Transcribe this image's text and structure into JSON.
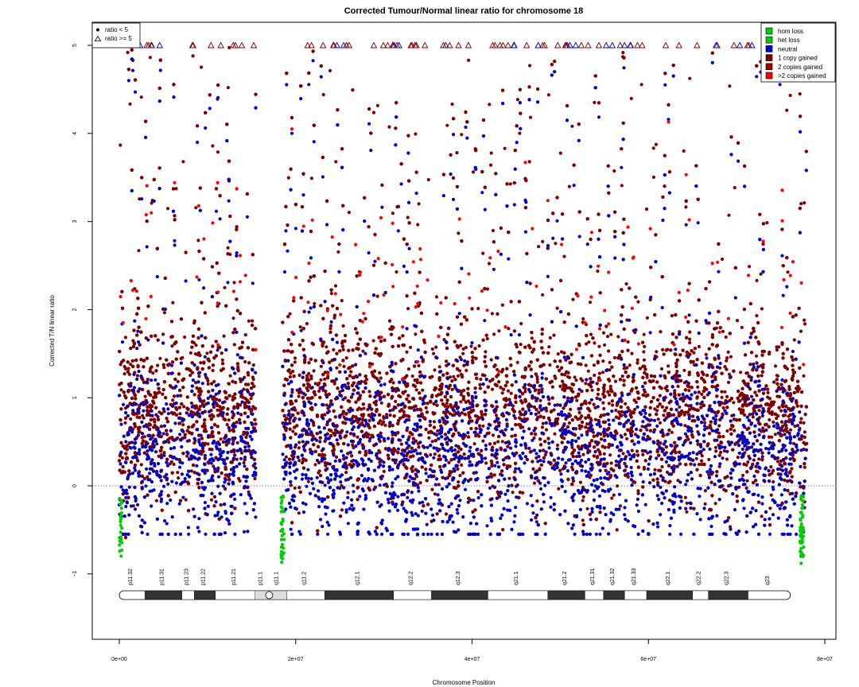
{
  "chart_data": {
    "type": "scatter",
    "title": "Corrected Tumour/Normal linear ratio for chromosome  18",
    "xlabel": "Chromosome Position",
    "ylabel": "Corrected T/N linear ratio",
    "xlim": [
      0,
      80000000
    ],
    "ylim": [
      -1.8,
      5.25
    ],
    "x_ticks": [
      0,
      20000000,
      40000000,
      60000000,
      80000000
    ],
    "x_tick_labels": [
      "0e+00",
      "2e+07",
      "4e+07",
      "6e+07",
      "8e+07"
    ],
    "y_ticks": [
      -1,
      0,
      1,
      2,
      3,
      4,
      5
    ],
    "y_tick_labels": [
      "−1",
      "0",
      "1",
      "2",
      "3",
      "4",
      "5"
    ],
    "reference_line": 0,
    "grid": false,
    "legend_shape": {
      "placement": "top-left",
      "entries": [
        {
          "label": "ratio < 5",
          "marker": "filled-circle"
        },
        {
          "label": "ratio >= 5",
          "marker": "open-triangle"
        }
      ]
    },
    "legend_state": {
      "placement": "top-right",
      "entries": [
        {
          "label": "hom loss",
          "color": "#00cc00"
        },
        {
          "label": "het loss",
          "color": "#00cc00"
        },
        {
          "label": "neutral",
          "color": "#0000cc"
        },
        {
          "label": "1 copy gained",
          "color": "#800000"
        },
        {
          "label": "2 copies gained",
          "color": "#a00000"
        },
        {
          "label": ">2 copies gained",
          "color": "#ff0000"
        }
      ]
    },
    "series": [
      {
        "name": "1 copy gained",
        "color": "#800000",
        "ranges": [
          [
            0,
            15500000
          ],
          [
            18500000,
            78000000
          ]
        ],
        "y_range": [
          -0.6,
          5.0
        ],
        "y_center": 0.8
      },
      {
        "name": "neutral",
        "color": "#0000cc",
        "ranges": [
          [
            0,
            15500000
          ],
          [
            18500000,
            78000000
          ]
        ],
        "y_range": [
          -0.55,
          4.9
        ],
        "y_center": 0.3
      },
      {
        "name": ">2 copies gained",
        "color": "#ff0000",
        "ranges": [
          [
            0,
            15500000
          ],
          [
            18500000,
            78000000
          ]
        ],
        "y_range": [
          1.2,
          4.5
        ],
        "y_center": 2.2
      },
      {
        "name": "het loss",
        "color": "#00cc00",
        "ranges": [
          [
            0,
            300000
          ],
          [
            18300000,
            18700000
          ],
          [
            77200000,
            77600000
          ]
        ],
        "y_range": [
          -0.9,
          -0.1
        ],
        "y_center": -0.5
      }
    ],
    "ideogram": {
      "centromere": 17000000,
      "bands": [
        {
          "name": "p11.32",
          "start": 0,
          "end": 2900000,
          "stain": "gneg"
        },
        {
          "name": "p11.31",
          "start": 2900000,
          "end": 7100000,
          "stain": "gpos"
        },
        {
          "name": "p11.23",
          "start": 7100000,
          "end": 8500000,
          "stain": "gneg"
        },
        {
          "name": "p11.22",
          "start": 8500000,
          "end": 10900000,
          "stain": "gpos"
        },
        {
          "name": "p11.21",
          "start": 10900000,
          "end": 15400000,
          "stain": "gneg"
        },
        {
          "name": "p11.1",
          "start": 15400000,
          "end": 17000000,
          "stain": "acen"
        },
        {
          "name": "q11.1",
          "start": 17000000,
          "end": 19000000,
          "stain": "acen"
        },
        {
          "name": "q11.2",
          "start": 19000000,
          "end": 23300000,
          "stain": "gneg"
        },
        {
          "name": "q12.1",
          "start": 23300000,
          "end": 31100000,
          "stain": "gpos"
        },
        {
          "name": "q12.2",
          "start": 31100000,
          "end": 35400000,
          "stain": "gneg"
        },
        {
          "name": "q12.3",
          "start": 35400000,
          "end": 41800000,
          "stain": "gpos"
        },
        {
          "name": "q21.1",
          "start": 41800000,
          "end": 48600000,
          "stain": "gneg"
        },
        {
          "name": "q21.2",
          "start": 48600000,
          "end": 52800000,
          "stain": "gpos"
        },
        {
          "name": "q21.31",
          "start": 52800000,
          "end": 54900000,
          "stain": "gneg"
        },
        {
          "name": "q21.32",
          "start": 54900000,
          "end": 57300000,
          "stain": "gpos"
        },
        {
          "name": "q21.33",
          "start": 57300000,
          "end": 59800000,
          "stain": "gneg"
        },
        {
          "name": "q22.1",
          "start": 59800000,
          "end": 65000000,
          "stain": "gpos"
        },
        {
          "name": "q22.2",
          "start": 65000000,
          "end": 66800000,
          "stain": "gneg"
        },
        {
          "name": "q22.3",
          "start": 66800000,
          "end": 71300000,
          "stain": "gpos"
        },
        {
          "name": "q23",
          "start": 71300000,
          "end": 76100000,
          "stain": "gneg"
        }
      ]
    }
  }
}
